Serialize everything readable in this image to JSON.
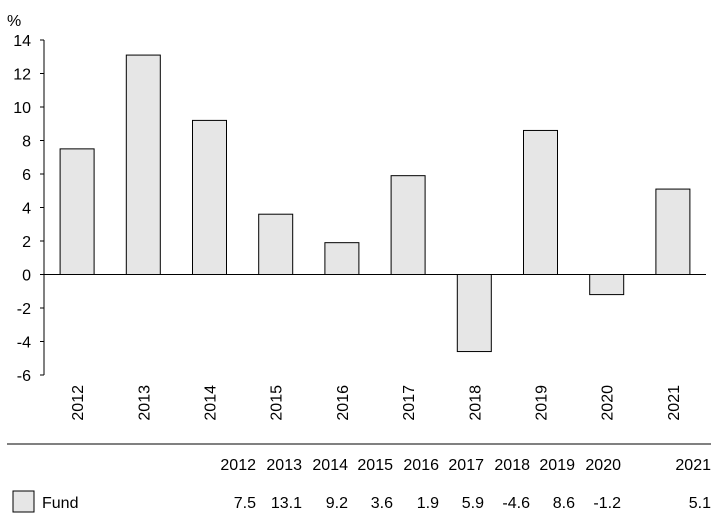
{
  "chart_data": {
    "type": "bar",
    "ylabel": "%",
    "ylim": [
      -6,
      14
    ],
    "yticks": [
      14,
      12,
      10,
      8,
      6,
      4,
      2,
      0,
      -2,
      -4,
      -6
    ],
    "categories": [
      "2012",
      "2013",
      "2014",
      "2015",
      "2016",
      "2017",
      "2018",
      "2019",
      "2020",
      "2021"
    ],
    "series": [
      {
        "name": "Fund",
        "values": [
          7.5,
          13.1,
          9.2,
          3.6,
          1.9,
          5.9,
          -4.6,
          8.6,
          -1.2,
          5.1
        ],
        "value_labels": [
          "7.5",
          "13.1",
          "9.2",
          "3.6",
          "1.9",
          "5.9",
          "-4.6",
          "8.6",
          "-1.2",
          "5.1"
        ],
        "color": "#e6e6e6"
      }
    ],
    "grid": false,
    "legend": "bottom-left (in data table)"
  }
}
